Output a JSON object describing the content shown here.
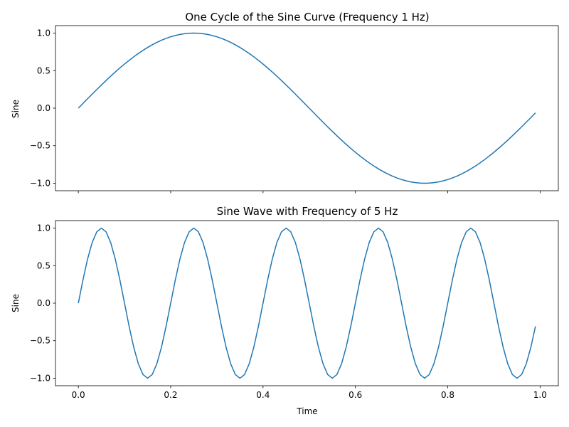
{
  "chart_data": [
    {
      "type": "line",
      "title": "One Cycle of the Sine Curve (Frequency 1 Hz)",
      "ylabel": "Sine",
      "xlabel": "",
      "frequency_hz": 1,
      "x_range": [
        0,
        0.99
      ],
      "x_step": 0.01,
      "xlim": [
        -0.0495,
        1.0395
      ],
      "ylim": [
        -1.1,
        1.1
      ],
      "xticks": [
        0.0,
        0.2,
        0.4,
        0.6,
        0.8,
        1.0
      ],
      "xtick_labels_visible": false,
      "yticks": [
        -1.0,
        -0.5,
        0.0,
        0.5,
        1.0
      ],
      "ytick_labels": [
        "−1.0",
        "−0.5",
        "0.0",
        "0.5",
        "1.0"
      ],
      "series": [
        {
          "color": "#1f77b4"
        }
      ]
    },
    {
      "type": "line",
      "title": "Sine Wave with Frequency of 5 Hz",
      "ylabel": "Sine",
      "xlabel": "Time",
      "frequency_hz": 5,
      "x_range": [
        0,
        0.99
      ],
      "x_step": 0.01,
      "xlim": [
        -0.0495,
        1.0395
      ],
      "ylim": [
        -1.1,
        1.1
      ],
      "xticks": [
        0.0,
        0.2,
        0.4,
        0.6,
        0.8,
        1.0
      ],
      "xtick_labels": [
        "0.0",
        "0.2",
        "0.4",
        "0.6",
        "0.8",
        "1.0"
      ],
      "xtick_labels_visible": true,
      "yticks": [
        -1.0,
        -0.5,
        0.0,
        0.5,
        1.0
      ],
      "ytick_labels": [
        "−1.0",
        "−0.5",
        "0.0",
        "0.5",
        "1.0"
      ],
      "series": [
        {
          "color": "#1f77b4"
        }
      ]
    }
  ]
}
